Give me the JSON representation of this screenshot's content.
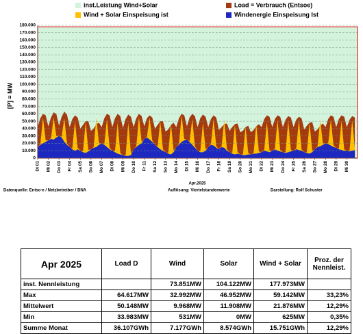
{
  "chart_data": {
    "type": "area",
    "y_label": "[P] = MW",
    "x_label": "Apr.2025",
    "annotations": [
      "Datenquelle: Entso-e  / Netzbetreiber / BNA",
      "Auflösung: Viertelstundenwerte",
      "Darstellung: Rolf Schuster"
    ],
    "grid": true,
    "xlim": [
      0,
      30
    ],
    "ylim": [
      0,
      180000
    ],
    "yticks": [
      0,
      {
        "value": 10000,
        "label": "10.000"
      },
      {
        "value": 20000,
        "label": "20.000"
      },
      {
        "value": 30000,
        "label": "30.000"
      },
      {
        "value": 40000,
        "label": "40.000"
      },
      {
        "value": 50000,
        "label": "50.000"
      },
      {
        "value": 60000,
        "label": "60.000"
      },
      {
        "value": 70000,
        "label": "70.000"
      },
      {
        "value": 80000,
        "label": "80.000"
      },
      {
        "value": 90000,
        "label": "90.000"
      },
      {
        "value": 100000,
        "label": "100.000"
      },
      {
        "value": 110000,
        "label": "110.000"
      },
      {
        "value": 120000,
        "label": "120.000"
      },
      {
        "value": 130000,
        "label": "130.000"
      },
      {
        "value": 140000,
        "label": "140.000"
      },
      {
        "value": 150000,
        "label": "150.000"
      },
      {
        "value": 160000,
        "label": "160.000"
      },
      {
        "value": 170000,
        "label": "170.000"
      },
      {
        "value": 180000,
        "label": "180.000"
      }
    ],
    "xticks": [
      {
        "value": 0,
        "label": "Di 01"
      },
      {
        "value": 1,
        "label": "Mi 02"
      },
      {
        "value": 2,
        "label": "Do 03"
      },
      {
        "value": 3,
        "label": "Fr 04"
      },
      {
        "value": 4,
        "label": "Sa 05"
      },
      {
        "value": 5,
        "label": "So 06"
      },
      {
        "value": 6,
        "label": "Mo 07"
      },
      {
        "value": 7,
        "label": "Di 08"
      },
      {
        "value": 8,
        "label": "Mi 09"
      },
      {
        "value": 9,
        "label": "Do 10"
      },
      {
        "value": 10,
        "label": "Fr 11"
      },
      {
        "value": 11,
        "label": "Sa 12"
      },
      {
        "value": 12,
        "label": "So 13"
      },
      {
        "value": 13,
        "label": "Mo 14"
      },
      {
        "value": 14,
        "label": "Di 15"
      },
      {
        "value": 15,
        "label": "Mi 16"
      },
      {
        "value": 16,
        "label": "Do 17"
      },
      {
        "value": 17,
        "label": "Fr 18"
      },
      {
        "value": 18,
        "label": "Sa 19"
      },
      {
        "value": 19,
        "label": "So 20"
      },
      {
        "value": 20,
        "label": "Mo 21"
      },
      {
        "value": 21,
        "label": "Di 22"
      },
      {
        "value": 22,
        "label": "Mi 23"
      },
      {
        "value": 23,
        "label": "Do 24"
      },
      {
        "value": 24,
        "label": "Fr 25"
      },
      {
        "value": 25,
        "label": "Sa 26"
      },
      {
        "value": 26,
        "label": "So 27"
      },
      {
        "value": 27,
        "label": "Mo 28"
      },
      {
        "value": 28,
        "label": "Di 29"
      },
      {
        "value": 29,
        "label": "Mi 30"
      }
    ],
    "x": [
      0,
      0.25,
      0.5,
      0.75,
      1,
      1.25,
      1.5,
      1.75,
      2,
      2.25,
      2.5,
      2.75,
      3,
      3.25,
      3.5,
      3.75,
      4,
      4.25,
      4.5,
      4.75,
      5,
      5.25,
      5.5,
      5.75,
      6,
      6.25,
      6.5,
      6.75,
      7,
      7.25,
      7.5,
      7.75,
      8,
      8.25,
      8.5,
      8.75,
      9,
      9.25,
      9.5,
      9.75,
      10,
      10.25,
      10.5,
      10.75,
      11,
      11.25,
      11.5,
      11.75,
      12,
      12.25,
      12.5,
      12.75,
      13,
      13.25,
      13.5,
      13.75,
      14,
      14.25,
      14.5,
      14.75,
      15,
      15.25,
      15.5,
      15.75,
      16,
      16.25,
      16.5,
      16.75,
      17,
      17.25,
      17.5,
      17.75,
      18,
      18.25,
      18.5,
      18.75,
      19,
      19.25,
      19.5,
      19.75,
      20,
      20.25,
      20.5,
      20.75,
      21,
      21.25,
      21.5,
      21.75,
      22,
      22.25,
      22.5,
      22.75,
      23,
      23.25,
      23.5,
      23.75,
      24,
      24.25,
      24.5,
      24.75,
      25,
      25.25,
      25.5,
      25.75,
      26,
      26.25,
      26.5,
      26.75,
      27,
      27.25,
      27.5,
      27.75,
      28,
      28.25,
      28.5,
      28.75,
      29,
      29.25,
      29.5,
      29.75
    ],
    "series": [
      {
        "name": "inst.Leistung Wind+Solar",
        "color": "#d3f3dd",
        "edge_color": "#e02020",
        "x": [
          0,
          30
        ],
        "values": [
          177973,
          177973
        ]
      },
      {
        "name": "Load =  Verbrauch (Entsoe)",
        "color": "#a33a10",
        "values": [
          42000,
          54000,
          60000,
          58000,
          43000,
          55000,
          62000,
          60000,
          44000,
          56000,
          63000,
          59000,
          42000,
          53000,
          58000,
          55000,
          40000,
          45000,
          50000,
          50000,
          37000,
          40000,
          46000,
          48000,
          42000,
          54000,
          60000,
          58000,
          42000,
          54000,
          60000,
          57000,
          41000,
          53000,
          59000,
          56000,
          42000,
          54000,
          60000,
          57000,
          43000,
          54000,
          58000,
          55000,
          40000,
          45000,
          50000,
          50000,
          36000,
          39000,
          45000,
          48000,
          42000,
          54000,
          60000,
          58000,
          43000,
          55000,
          60000,
          57000,
          42000,
          54000,
          59000,
          56000,
          42000,
          53000,
          58000,
          55000,
          38000,
          42000,
          46000,
          47000,
          37000,
          42000,
          46000,
          47000,
          35000,
          37000,
          42000,
          44000,
          35000,
          38000,
          43000,
          46000,
          42000,
          53000,
          58000,
          56000,
          42000,
          53000,
          58000,
          56000,
          42000,
          52000,
          57000,
          55000,
          42000,
          52000,
          56000,
          54000,
          39000,
          44000,
          48000,
          49000,
          36000,
          39000,
          44000,
          47000,
          42000,
          53000,
          58000,
          56000,
          42000,
          53000,
          58000,
          56000,
          42000,
          52000,
          57000,
          55000
        ]
      },
      {
        "name": "Wind + Solar Einspeisung ist",
        "color": "#ffc000",
        "values": [
          15000,
          19000,
          55000,
          24000,
          24000,
          27000,
          55000,
          30000,
          30000,
          29000,
          54000,
          20000,
          15000,
          13000,
          50000,
          14000,
          10000,
          9000,
          49000,
          11000,
          12000,
          15000,
          55000,
          20000,
          20000,
          19000,
          53000,
          14000,
          10000,
          9000,
          48000,
          7000,
          4000,
          4000,
          48000,
          6000,
          12000,
          16000,
          56000,
          22000,
          26000,
          29000,
          55000,
          24000,
          18000,
          16000,
          50000,
          12000,
          8000,
          7000,
          47000,
          10000,
          15000,
          19000,
          58000,
          26000,
          25000,
          23000,
          53000,
          16000,
          10000,
          9000,
          48000,
          12000,
          15000,
          19000,
          53000,
          16000,
          12000,
          16000,
          52000,
          12000,
          8000,
          7000,
          45000,
          8000,
          5000,
          5000,
          42000,
          7000,
          5000,
          7000,
          46000,
          9000,
          8000,
          11000,
          49000,
          10000,
          10000,
          13000,
          52000,
          11000,
          8000,
          8000,
          51000,
          11000,
          10000,
          13000,
          52000,
          12000,
          8000,
          8000,
          48000,
          10000,
          12000,
          16000,
          52000,
          20000,
          20000,
          20000,
          52000,
          17000,
          14000,
          13000,
          51000,
          12000,
          10000,
          10000,
          51000,
          13000
        ]
      },
      {
        "name": "Windenergie Einspeisung Ist",
        "color": "#1c28c0",
        "values": [
          15000,
          18000,
          20000,
          22000,
          24000,
          26000,
          25000,
          28000,
          30000,
          28000,
          22000,
          18000,
          15000,
          12000,
          10000,
          12000,
          10000,
          8000,
          7000,
          9000,
          12000,
          14000,
          15000,
          18000,
          20000,
          18000,
          15000,
          12000,
          10000,
          8000,
          6000,
          5000,
          4000,
          3000,
          3000,
          4000,
          12000,
          15000,
          18000,
          20000,
          26000,
          28000,
          25000,
          22000,
          18000,
          15000,
          12000,
          10000,
          8000,
          6000,
          5000,
          8000,
          15000,
          18000,
          22000,
          24000,
          25000,
          22000,
          18000,
          14000,
          10000,
          8000,
          8000,
          10000,
          15000,
          18000,
          17000,
          14000,
          12000,
          15000,
          14000,
          10000,
          8000,
          6000,
          5000,
          6000,
          5000,
          4000,
          4000,
          5000,
          5000,
          6000,
          6000,
          7000,
          8000,
          10000,
          9000,
          8000,
          10000,
          12000,
          10000,
          9000,
          8000,
          7000,
          8000,
          9000,
          10000,
          12000,
          11000,
          10000,
          8000,
          7000,
          6000,
          8000,
          12000,
          15000,
          16000,
          18000,
          20000,
          19000,
          17000,
          15000,
          14000,
          12000,
          11000,
          10000,
          10000,
          9000,
          10000,
          11000
        ]
      }
    ]
  },
  "table": {
    "header": [
      "Apr 2025",
      "Load D",
      "Wind",
      "Solar",
      "Wind + Solar",
      "Proz. der Nennleist."
    ],
    "rows": [
      [
        "inst. Nennleistung",
        null,
        "73.851MW",
        "104.122MW",
        "177.973MW",
        null
      ],
      [
        "Max",
        "64.617MW",
        "32.992MW",
        "46.952MW",
        "59.142MW",
        "33,23%"
      ],
      [
        "Mittelwert",
        "50.148MW",
        "9.968MW",
        "11.908MW",
        "21.876MW",
        "12,29%"
      ],
      [
        "Min",
        "33.983MW",
        "531MW",
        "0MW",
        "625MW",
        "0,35%"
      ],
      [
        "Summe Monat",
        "36.107GWh",
        "7.177GWh",
        "8.574GWh",
        "15.751GWh",
        "12,29%"
      ]
    ]
  }
}
